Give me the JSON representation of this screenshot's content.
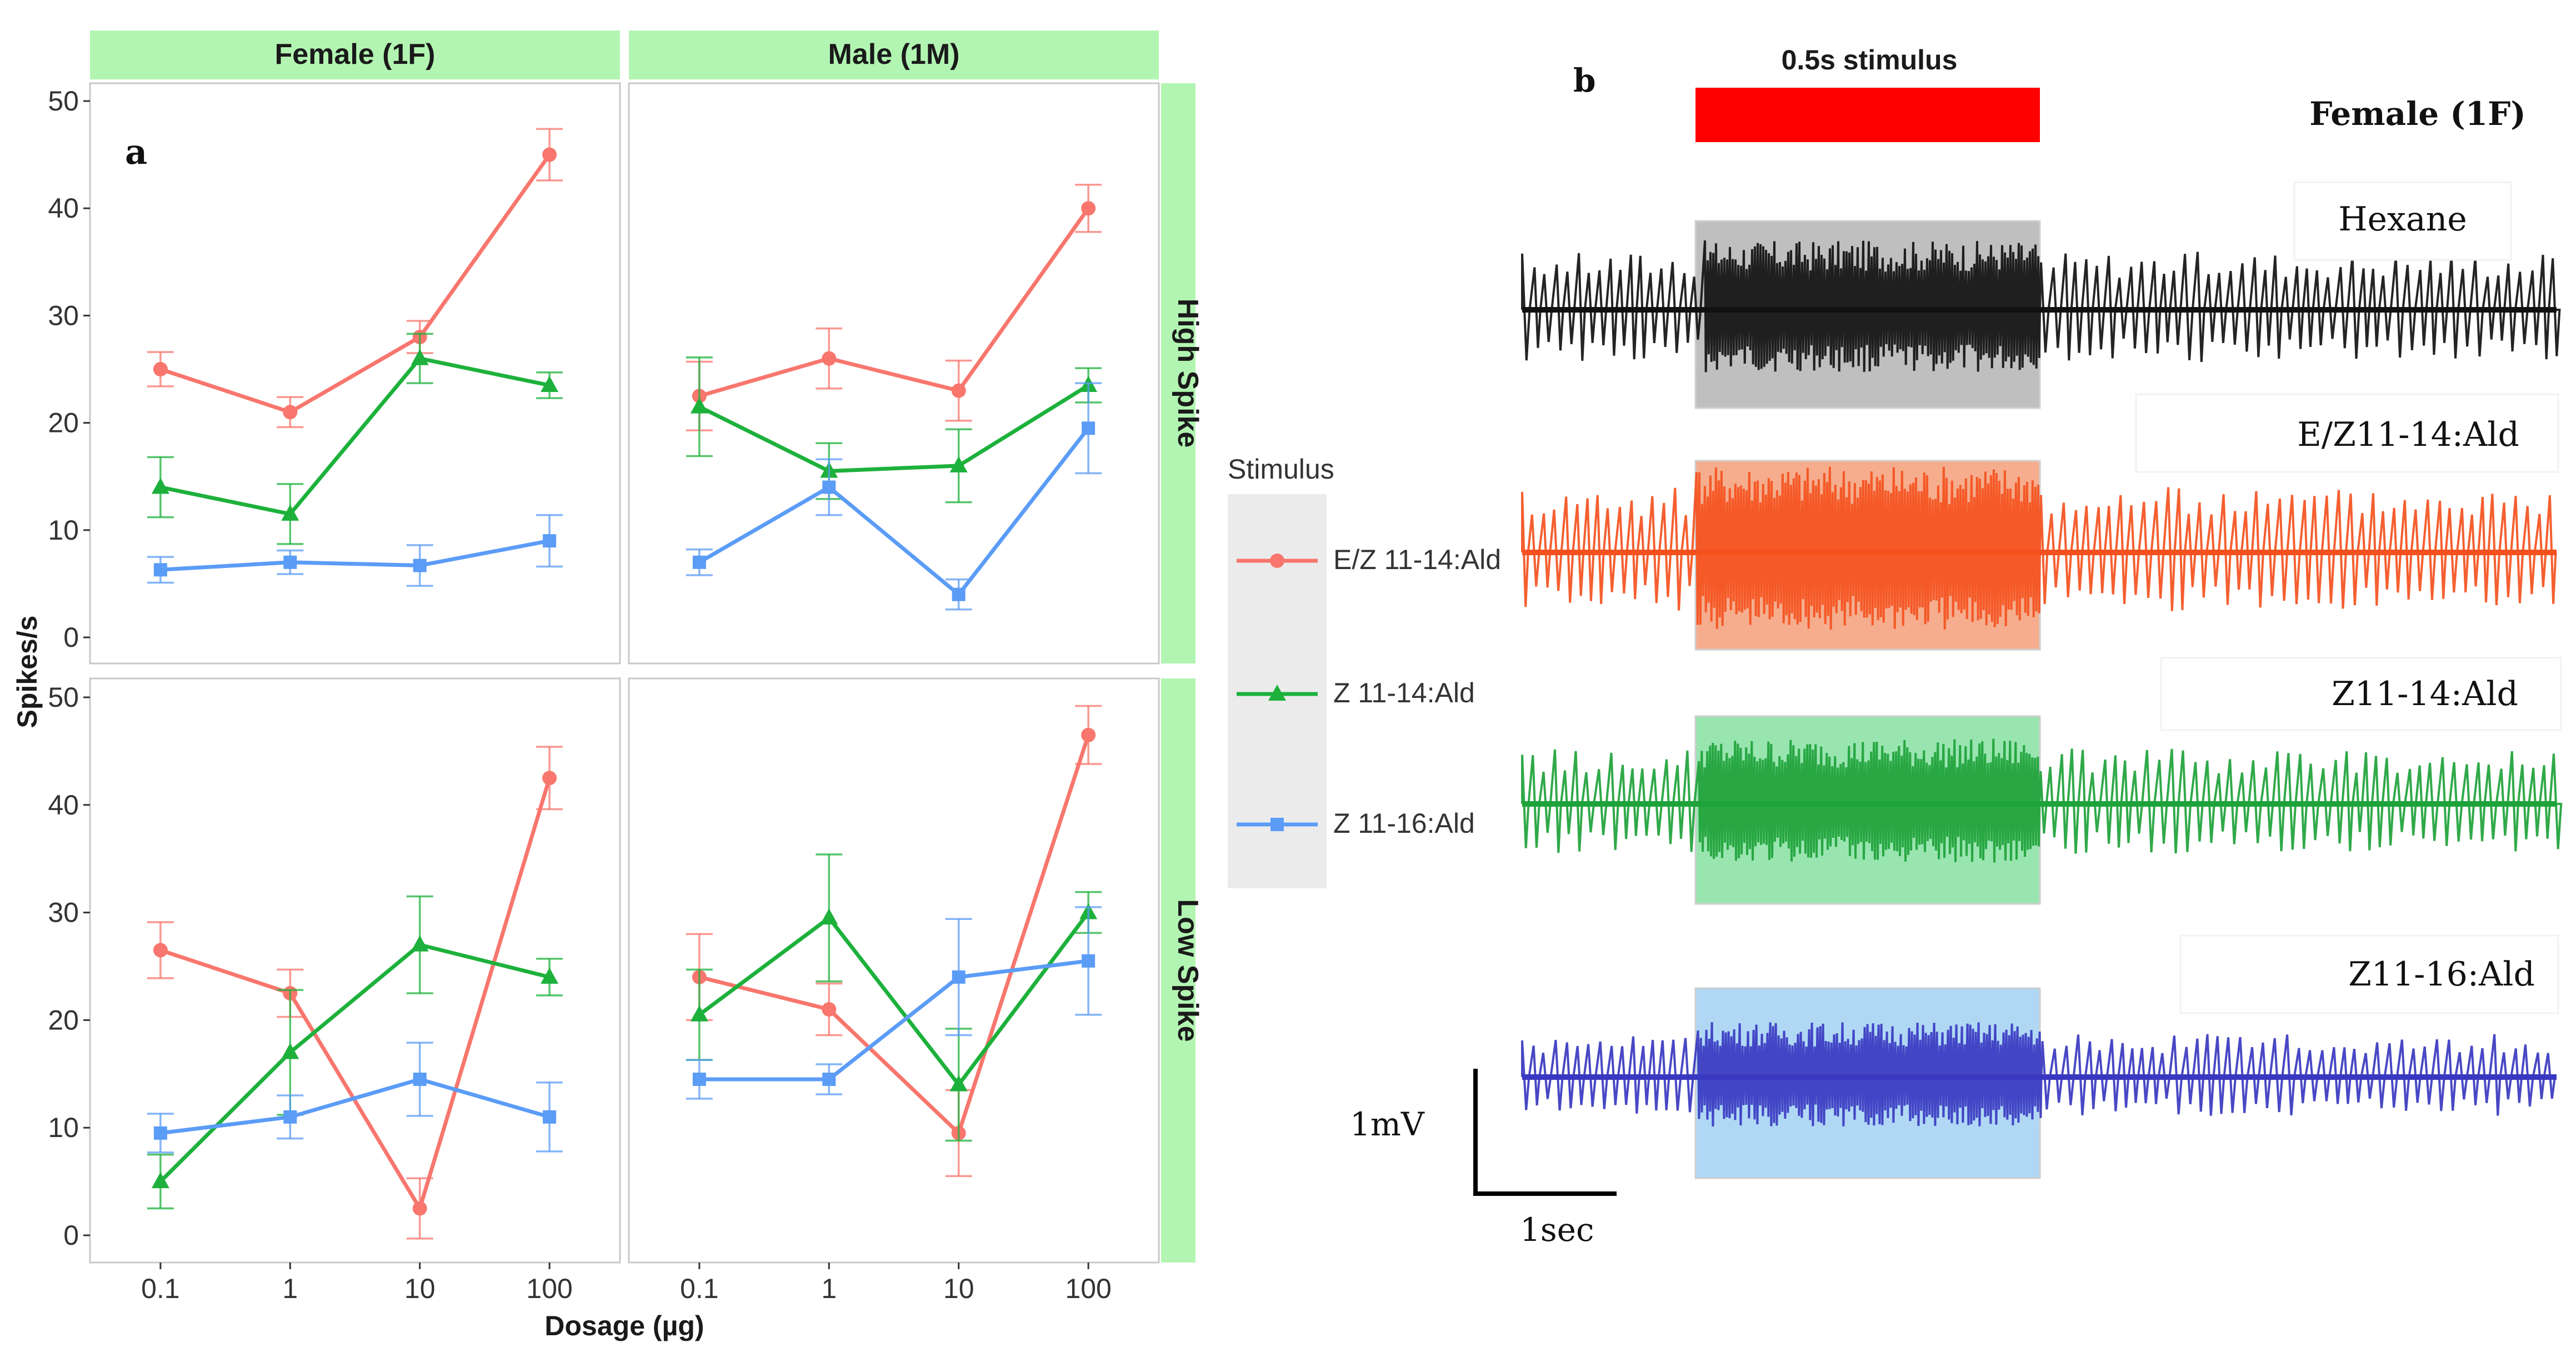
{
  "chart_data": [
    {
      "type": "line",
      "panel_label": "a",
      "facet_columns": [
        "Female (1F)",
        "Male (1M)"
      ],
      "facet_rows": [
        "High Spike",
        "Low Spike"
      ],
      "xlabel": "Dosage (µg)",
      "ylabel": "Spikes/s",
      "categories": [
        "0.1",
        "1",
        "10",
        "100"
      ],
      "ylim": [
        0,
        50
      ],
      "yticks": [
        0,
        10,
        20,
        30,
        40,
        50
      ],
      "legend": {
        "title": "Stimulus",
        "position": "right",
        "entries": [
          "E/Z 11-14:Ald",
          "Z 11-14:Ald",
          "Z 11-16:Ald"
        ]
      },
      "series_colors": {
        "E/Z 11-14:Ald": "#f8766d",
        "Z 11-14:Ald": "#1db13c",
        "Z 11-16:Ald": "#5b9cf7"
      },
      "series_markers": {
        "E/Z 11-14:Ald": "circle",
        "Z 11-14:Ald": "triangle",
        "Z 11-16:Ald": "square"
      },
      "panels": [
        {
          "column": "Female (1F)",
          "row": "High Spike",
          "series": [
            {
              "name": "E/Z 11-14:Ald",
              "values": [
                25,
                21,
                28,
                45
              ],
              "err": [
                1.6,
                1.4,
                1.5,
                2.4
              ]
            },
            {
              "name": "Z 11-14:Ald",
              "values": [
                14,
                11.5,
                26,
                23.5
              ],
              "err": [
                2.8,
                2.8,
                2.3,
                1.2
              ]
            },
            {
              "name": "Z 11-16:Ald",
              "values": [
                6.3,
                7,
                6.7,
                9
              ],
              "err": [
                1.2,
                1.1,
                1.9,
                2.4
              ]
            }
          ]
        },
        {
          "column": "Male (1M)",
          "row": "High Spike",
          "series": [
            {
              "name": "E/Z 11-14:Ald",
              "values": [
                22.5,
                26,
                23,
                40
              ],
              "err": [
                3.2,
                2.8,
                2.8,
                2.2
              ]
            },
            {
              "name": "Z 11-14:Ald",
              "values": [
                21.5,
                15.5,
                16,
                23.5
              ],
              "err": [
                4.6,
                2.6,
                3.4,
                1.6
              ]
            },
            {
              "name": "Z 11-16:Ald",
              "values": [
                7,
                14,
                4,
                19.5
              ],
              "err": [
                1.2,
                2.6,
                1.4,
                4.2
              ]
            }
          ]
        },
        {
          "column": "Female (1F)",
          "row": "Low Spike",
          "series": [
            {
              "name": "E/Z 11-14:Ald",
              "values": [
                26.5,
                22.5,
                2.5,
                42.5
              ],
              "err": [
                2.6,
                2.2,
                2.8,
                2.9
              ]
            },
            {
              "name": "Z 11-14:Ald",
              "values": [
                5,
                17,
                27,
                24
              ],
              "err": [
                2.5,
                5.8,
                4.5,
                1.7
              ]
            },
            {
              "name": "Z 11-16:Ald",
              "values": [
                9.5,
                11,
                14.5,
                11
              ],
              "err": [
                1.8,
                2.0,
                3.4,
                3.2
              ]
            }
          ]
        },
        {
          "column": "Male (1M)",
          "row": "Low Spike",
          "series": [
            {
              "name": "E/Z 11-14:Ald",
              "values": [
                24,
                21,
                9.5,
                46.5
              ],
              "err": [
                4.0,
                2.4,
                4.0,
                2.7
              ]
            },
            {
              "name": "Z 11-14:Ald",
              "values": [
                20.5,
                29.5,
                14,
                30
              ],
              "err": [
                4.2,
                5.9,
                5.2,
                1.9
              ]
            },
            {
              "name": "Z 11-16:Ald",
              "values": [
                14.5,
                14.5,
                24,
                25.5
              ],
              "err": [
                1.8,
                1.4,
                5.4,
                5.0
              ]
            }
          ]
        }
      ]
    },
    {
      "type": "other",
      "panel_label": "b",
      "description_title": "Female (1F)",
      "stimulus_label": "0.5s stimulus",
      "stimulus_color": "#ff0000",
      "traces": [
        {
          "label": "Hexane",
          "color": "#111111",
          "window_color": "#b4b4b4"
        },
        {
          "label": "E/Z11-14:Ald",
          "color": "#f4511e",
          "window_color": "#f4a582"
        },
        {
          "label": "Z11-14:Ald",
          "color": "#1ea23a",
          "window_color": "#8fe3a8"
        },
        {
          "label": "Z11-16:Ald",
          "color": "#3838c0",
          "window_color": "#a8d4f5"
        }
      ],
      "scale_bar": {
        "voltage": "1mV",
        "time": "1sec"
      }
    }
  ]
}
